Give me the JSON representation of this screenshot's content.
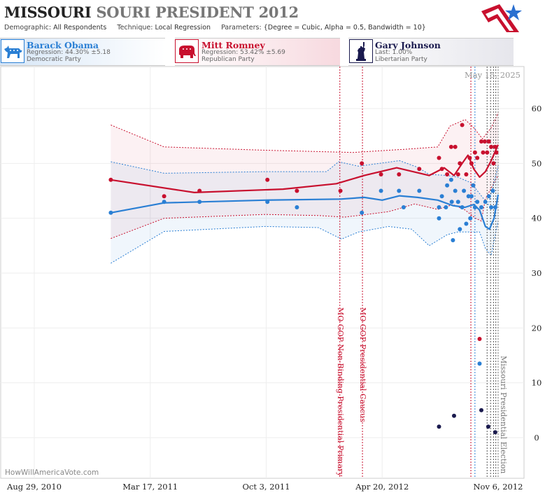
{
  "header": {
    "state": "MISSOURI",
    "race": "SOURI PRESIDENT 2012",
    "demographic_label": "Demographic:",
    "demographic_value": "All Respondents",
    "technique_label": "Technique:",
    "technique_value": "Local Regression",
    "parameters_label": "Parameters:",
    "parameters_value": "{Degree = Cubic, Alpha = 0.5, Bandwidth = 10}"
  },
  "candidates": [
    {
      "name": "Barack Obama",
      "stat": "Regression: 44.30% ±5.18",
      "party": "Democratic Party",
      "color": "#2a7fd4"
    },
    {
      "name": "Mitt Romney",
      "stat": "Regression: 53.42% ±5.69",
      "party": "Republican Party",
      "color": "#c8102e"
    },
    {
      "name": "Gary Johnson",
      "stat": "Last: 1.00%",
      "party": "Libertarian Party",
      "color": "#1a1a4e"
    }
  ],
  "watermark": "HowWillAmericaVote.com",
  "date_stamp": "May 15, 2025",
  "chart_data": {
    "type": "scatter",
    "x_ticks": [
      "Aug 29, 2010",
      "Mar 17, 2011",
      "Oct 3, 2011",
      "Apr 20, 2012",
      "Nov 6, 2012"
    ],
    "y_ticks": [
      0,
      10,
      20,
      30,
      40,
      50,
      60
    ],
    "ylim": [
      -5,
      66
    ],
    "xlim": [
      "2010-08-29",
      "2012-11-20"
    ],
    "grid": true,
    "events": [
      {
        "label": "MO GOP Non-Binding Presidential Primary",
        "date": "2012-02-07",
        "color": "#c8102e"
      },
      {
        "label": "MO GOP Presidential Caucus",
        "date": "2012-03-17",
        "color": "#c8102e"
      },
      {
        "label": "Missouri Presidential Election",
        "date": "2012-11-06",
        "color": "#777777"
      }
    ],
    "poll_lines": [
      {
        "date": "2012-09-20",
        "color": "#c8102e"
      },
      {
        "date": "2012-09-27",
        "color": "#2a7fd4"
      },
      {
        "date": "2012-10-18",
        "color": "#555555"
      },
      {
        "date": "2012-10-24",
        "color": "#555555"
      },
      {
        "date": "2012-10-29",
        "color": "#555555"
      },
      {
        "date": "2012-11-02",
        "color": "#555555"
      }
    ],
    "series": [
      {
        "name": "Mitt Romney",
        "color": "#c8102e",
        "points": [
          [
            "2011-01-08",
            47
          ],
          [
            "2011-04-10",
            44
          ],
          [
            "2011-06-10",
            45
          ],
          [
            "2011-10-05",
            47
          ],
          [
            "2011-11-25",
            45
          ],
          [
            "2012-02-08",
            45
          ],
          [
            "2012-03-16",
            50
          ],
          [
            "2012-04-18",
            48
          ],
          [
            "2012-05-19",
            48
          ],
          [
            "2012-06-23",
            49
          ],
          [
            "2012-07-27",
            51
          ],
          [
            "2012-08-01",
            49
          ],
          [
            "2012-08-10",
            48
          ],
          [
            "2012-08-17",
            53
          ],
          [
            "2012-08-24",
            53
          ],
          [
            "2012-08-29",
            48
          ],
          [
            "2012-09-01",
            50
          ],
          [
            "2012-09-05",
            57
          ],
          [
            "2012-09-12",
            48
          ],
          [
            "2012-09-18",
            51
          ],
          [
            "2012-09-21",
            50
          ],
          [
            "2012-09-24",
            46
          ],
          [
            "2012-09-27",
            52
          ],
          [
            "2012-10-01",
            51
          ],
          [
            "2012-10-05",
            18
          ],
          [
            "2012-10-08",
            54
          ],
          [
            "2012-10-11",
            52
          ],
          [
            "2012-10-14",
            54
          ],
          [
            "2012-10-18",
            52
          ],
          [
            "2012-10-21",
            54
          ],
          [
            "2012-10-25",
            53
          ],
          [
            "2012-10-29",
            50
          ],
          [
            "2012-11-01",
            53
          ],
          [
            "2012-11-03",
            52
          ]
        ],
        "trend": [
          [
            "2011-01-08",
            47
          ],
          [
            "2011-06-01",
            44.7
          ],
          [
            "2011-11-01",
            45.3
          ],
          [
            "2012-02-01",
            46.3
          ],
          [
            "2012-03-20",
            47.8
          ],
          [
            "2012-05-15",
            49.2
          ],
          [
            "2012-07-10",
            47.8
          ],
          [
            "2012-08-05",
            49.2
          ],
          [
            "2012-08-22",
            47.8
          ],
          [
            "2012-09-05",
            50
          ],
          [
            "2012-09-15",
            51.5
          ],
          [
            "2012-09-25",
            49
          ],
          [
            "2012-10-05",
            47.5
          ],
          [
            "2012-10-15",
            48.5
          ],
          [
            "2012-10-25",
            50.5
          ],
          [
            "2012-11-06",
            53.4
          ]
        ],
        "band_upper": [
          [
            "2011-01-08",
            57
          ],
          [
            "2011-04-10",
            53
          ],
          [
            "2011-10-01",
            52.4
          ],
          [
            "2012-03-01",
            52
          ],
          [
            "2012-06-01",
            52.6
          ],
          [
            "2012-07-25",
            53
          ],
          [
            "2012-08-15",
            56.8
          ],
          [
            "2012-09-10",
            58
          ],
          [
            "2012-09-25",
            56.5
          ],
          [
            "2012-10-10",
            54.5
          ],
          [
            "2012-10-25",
            56.5
          ],
          [
            "2012-11-06",
            59.2
          ]
        ],
        "band_lower": [
          [
            "2011-01-08",
            36.3
          ],
          [
            "2011-04-10",
            40
          ],
          [
            "2011-10-01",
            40.7
          ],
          [
            "2012-01-01",
            40.5
          ],
          [
            "2012-02-15",
            40.2
          ],
          [
            "2012-05-01",
            41.2
          ],
          [
            "2012-06-15",
            42.6
          ],
          [
            "2012-07-25",
            41.6
          ],
          [
            "2012-08-20",
            42.5
          ],
          [
            "2012-09-10",
            41.5
          ],
          [
            "2012-09-28",
            40
          ],
          [
            "2012-10-08",
            39.5
          ],
          [
            "2012-10-15",
            43.5
          ],
          [
            "2012-10-25",
            45.5
          ],
          [
            "2012-11-06",
            47.8
          ]
        ]
      },
      {
        "name": "Barack Obama",
        "color": "#2a7fd4",
        "points": [
          [
            "2011-01-08",
            41
          ],
          [
            "2011-04-10",
            43
          ],
          [
            "2011-06-10",
            43
          ],
          [
            "2011-10-05",
            43
          ],
          [
            "2011-11-25",
            42
          ],
          [
            "2012-03-16",
            41
          ],
          [
            "2012-04-18",
            45
          ],
          [
            "2012-05-19",
            45
          ],
          [
            "2012-05-27",
            42
          ],
          [
            "2012-06-23",
            45
          ],
          [
            "2012-07-27",
            42
          ],
          [
            "2012-07-27",
            40
          ],
          [
            "2012-08-01",
            44
          ],
          [
            "2012-08-08",
            42
          ],
          [
            "2012-08-10",
            46
          ],
          [
            "2012-08-17",
            47
          ],
          [
            "2012-08-18",
            43
          ],
          [
            "2012-08-20",
            36
          ],
          [
            "2012-08-24",
            45
          ],
          [
            "2012-08-29",
            43
          ],
          [
            "2012-09-01",
            38
          ],
          [
            "2012-09-05",
            42
          ],
          [
            "2012-09-08",
            45
          ],
          [
            "2012-09-12",
            39
          ],
          [
            "2012-09-16",
            44
          ],
          [
            "2012-09-19",
            40
          ],
          [
            "2012-09-21",
            44
          ],
          [
            "2012-09-24",
            46
          ],
          [
            "2012-09-27",
            42
          ],
          [
            "2012-10-01",
            43
          ],
          [
            "2012-10-05",
            13.5
          ],
          [
            "2012-10-08",
            42
          ],
          [
            "2012-10-15",
            43
          ],
          [
            "2012-10-21",
            44
          ],
          [
            "2012-10-25",
            42
          ],
          [
            "2012-10-28",
            45
          ],
          [
            "2012-11-01",
            42
          ]
        ],
        "trend": [
          [
            "2011-01-08",
            41
          ],
          [
            "2011-04-10",
            42.8
          ],
          [
            "2011-10-01",
            43.3
          ],
          [
            "2012-02-08",
            43.5
          ],
          [
            "2012-03-20",
            43.8
          ],
          [
            "2012-04-20",
            43.3
          ],
          [
            "2012-05-20",
            44.1
          ],
          [
            "2012-06-20",
            43.8
          ],
          [
            "2012-07-25",
            43.3
          ],
          [
            "2012-08-20",
            42.3
          ],
          [
            "2012-09-10",
            42
          ],
          [
            "2012-09-25",
            42.5
          ],
          [
            "2012-10-05",
            41.5
          ],
          [
            "2012-10-15",
            38.5
          ],
          [
            "2012-10-22",
            38
          ],
          [
            "2012-10-30",
            40
          ],
          [
            "2012-11-06",
            44.3
          ]
        ],
        "band_upper": [
          [
            "2011-01-08",
            50.3
          ],
          [
            "2011-04-10",
            48.2
          ],
          [
            "2011-10-01",
            48.5
          ],
          [
            "2012-01-15",
            48.5
          ],
          [
            "2012-02-05",
            50.3
          ],
          [
            "2012-03-10",
            49.5
          ],
          [
            "2012-05-20",
            50.5
          ],
          [
            "2012-06-20",
            49.3
          ],
          [
            "2012-07-10",
            48
          ],
          [
            "2012-08-10",
            47.8
          ],
          [
            "2012-08-28",
            47.5
          ],
          [
            "2012-09-20",
            46.5
          ],
          [
            "2012-10-05",
            44.5
          ],
          [
            "2012-10-20",
            42.5
          ],
          [
            "2012-11-06",
            49.5
          ]
        ],
        "band_lower": [
          [
            "2011-01-08",
            31.8
          ],
          [
            "2011-04-10",
            37.6
          ],
          [
            "2011-10-01",
            38.5
          ],
          [
            "2012-01-01",
            38.3
          ],
          [
            "2012-02-10",
            36.2
          ],
          [
            "2012-03-10",
            37.5
          ],
          [
            "2012-05-01",
            38.5
          ],
          [
            "2012-06-10",
            38
          ],
          [
            "2012-07-10",
            35
          ],
          [
            "2012-08-10",
            37
          ],
          [
            "2012-08-28",
            37.5
          ],
          [
            "2012-09-20",
            37.5
          ],
          [
            "2012-10-05",
            37.5
          ],
          [
            "2012-10-15",
            34.5
          ],
          [
            "2012-10-25",
            33.2
          ],
          [
            "2012-11-06",
            39.5
          ]
        ]
      },
      {
        "name": "Gary Johnson",
        "color": "#1a1a4e",
        "points": [
          [
            "2012-07-27",
            2
          ],
          [
            "2012-08-22",
            4
          ],
          [
            "2012-10-08",
            5
          ],
          [
            "2012-10-20",
            2
          ],
          [
            "2012-11-01",
            1
          ]
        ]
      }
    ]
  }
}
